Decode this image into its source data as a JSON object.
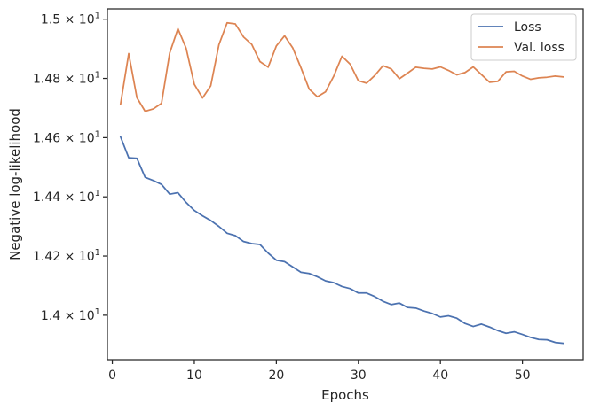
{
  "chart_data": {
    "type": "line",
    "xlabel": "Epochs",
    "ylabel": "Negative log-likelihood",
    "xlim": [
      -0.6,
      57.4
    ],
    "ylim": [
      13.85,
      15.035
    ],
    "x_ticks": [
      0,
      10,
      20,
      30,
      40,
      50
    ],
    "x_tick_labels": [
      "0",
      "10",
      "20",
      "30",
      "40",
      "50"
    ],
    "y_ticks": [
      14.0,
      14.2,
      14.4,
      14.6,
      14.8,
      15.0
    ],
    "y_tick_labels": [
      {
        "mantissa": "1.4",
        "exp": "1"
      },
      {
        "mantissa": "1.42",
        "exp": "1"
      },
      {
        "mantissa": "1.44",
        "exp": "1"
      },
      {
        "mantissa": "1.46",
        "exp": "1"
      },
      {
        "mantissa": "1.48",
        "exp": "1"
      },
      {
        "mantissa": "1.5",
        "exp": "1"
      }
    ],
    "grid": false,
    "legend_position": "top-right",
    "x": [
      1,
      2,
      3,
      4,
      5,
      6,
      7,
      8,
      9,
      10,
      11,
      12,
      13,
      14,
      15,
      16,
      17,
      18,
      19,
      20,
      21,
      22,
      23,
      24,
      25,
      26,
      27,
      28,
      29,
      30,
      31,
      32,
      33,
      34,
      35,
      36,
      37,
      38,
      39,
      40,
      41,
      42,
      43,
      44,
      45,
      46,
      47,
      48,
      49,
      50,
      51,
      52,
      53,
      54,
      55
    ],
    "series": [
      {
        "name": "Loss",
        "color": "#4c72b0",
        "values": [
          14.603,
          14.532,
          14.53,
          14.466,
          14.455,
          14.442,
          14.409,
          14.414,
          14.381,
          14.354,
          14.336,
          14.32,
          14.3,
          14.277,
          14.269,
          14.249,
          14.242,
          14.239,
          14.21,
          14.186,
          14.181,
          14.163,
          14.145,
          14.141,
          14.13,
          14.116,
          14.11,
          14.097,
          14.09,
          14.075,
          14.075,
          14.063,
          14.047,
          14.036,
          14.041,
          14.026,
          14.024,
          14.014,
          14.006,
          13.994,
          13.998,
          13.99,
          13.972,
          13.962,
          13.97,
          13.96,
          13.948,
          13.939,
          13.944,
          13.935,
          13.925,
          13.918,
          13.917,
          13.908,
          13.905
        ]
      },
      {
        "name": "Val. loss",
        "color": "#dd8452",
        "values": [
          14.712,
          14.884,
          14.735,
          14.689,
          14.697,
          14.716,
          14.886,
          14.968,
          14.902,
          14.78,
          14.734,
          14.775,
          14.914,
          14.988,
          14.984,
          14.94,
          14.915,
          14.857,
          14.838,
          14.91,
          14.944,
          14.903,
          14.836,
          14.764,
          14.738,
          14.755,
          14.808,
          14.875,
          14.848,
          14.792,
          14.784,
          14.81,
          14.843,
          14.832,
          14.799,
          14.818,
          14.838,
          14.834,
          14.832,
          14.839,
          14.827,
          14.812,
          14.82,
          14.839,
          14.813,
          14.787,
          14.79,
          14.822,
          14.824,
          14.808,
          14.797,
          14.802,
          14.804,
          14.808,
          14.805
        ]
      }
    ]
  }
}
